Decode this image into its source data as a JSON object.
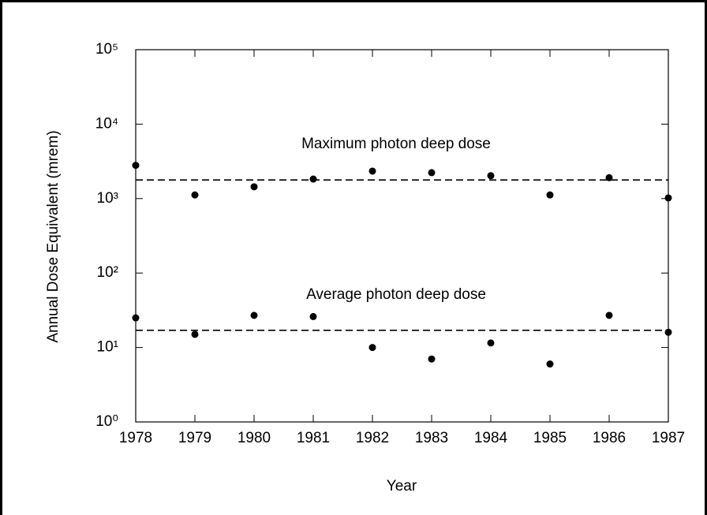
{
  "chart_data": {
    "type": "scatter",
    "x_label": "Year",
    "y_label": "Annual Dose Equivalent (mrem)",
    "x": [
      1978,
      1979,
      1980,
      1981,
      1982,
      1983,
      1984,
      1985,
      1986,
      1987
    ],
    "series": [
      {
        "color": "#000000",
        "values": [
          2800,
          1120,
          1440,
          1830,
          2340,
          2230,
          2030,
          1120,
          1910,
          1020
        ]
      },
      {
        "color": "#000000",
        "values": [
          25,
          15,
          27,
          26,
          10,
          7,
          11.5,
          6,
          27,
          16
        ]
      }
    ],
    "reference_lines": [
      {
        "label": "Maximum photon deep dose",
        "value": 1780
      },
      {
        "label": "Average photon deep dose",
        "value": 17
      }
    ],
    "xlim": [
      1978,
      1987
    ],
    "xticks": [
      1978,
      1979,
      1980,
      1981,
      1982,
      1983,
      1984,
      1985,
      1986,
      1987
    ],
    "ylim": [
      1,
      100000
    ],
    "yticks": [
      {
        "value": 1,
        "label": "10⁰"
      },
      {
        "value": 10,
        "label": "10¹"
      },
      {
        "value": 100,
        "label": "10²"
      },
      {
        "value": 1000,
        "label": "10³"
      },
      {
        "value": 10000,
        "label": "10⁴"
      },
      {
        "value": 100000,
        "label": "10⁵"
      }
    ],
    "log_y": true,
    "grid": false
  }
}
